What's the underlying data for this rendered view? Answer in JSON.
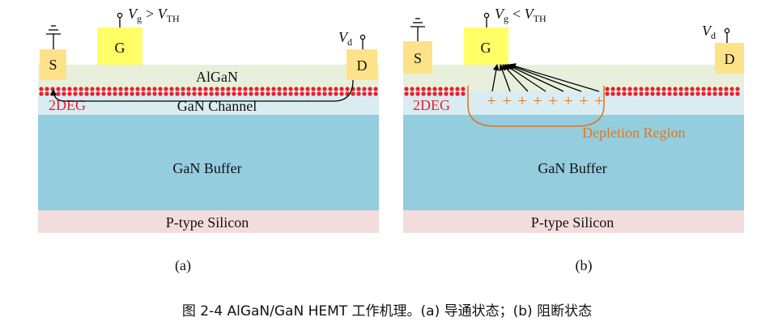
{
  "colors": {
    "algan": "#e8f0dc",
    "gan_channel": "#d8ecf2",
    "gan_buffer": "#94cddd",
    "silicon": "#f3dcdc",
    "electrode": "#fde28a",
    "gate": "#ffff66",
    "deg_red": "#e8202a",
    "depletion": "#e07820",
    "arrow": "#000000"
  },
  "panel_a": {
    "vg_label": "V",
    "vg_sub": "g",
    "vg_relation": "> ",
    "vth_label": "V",
    "vth_sub": "TH",
    "vd_label": "V",
    "vd_sub": "d",
    "source": "S",
    "gate": "G",
    "drain": "D",
    "algan": "AlGaN",
    "channel": "GaN Channel",
    "deg": "2DEG",
    "buffer": "GaN Buffer",
    "silicon": "P-type Silicon",
    "caption": "(a)"
  },
  "panel_b": {
    "vg_label": "V",
    "vg_sub": "g",
    "vg_relation": "< ",
    "vth_label": "V",
    "vth_sub": "TH",
    "vd_label": "V",
    "vd_sub": "d",
    "source": "S",
    "gate": "G",
    "drain": "D",
    "deg": "2DEG",
    "buffer": "GaN Buffer",
    "silicon": "P-type Silicon",
    "depletion": "Depletion Region",
    "charges": [
      "+",
      "+",
      "+",
      "+",
      "+",
      "+",
      "+",
      "+"
    ],
    "caption": "(b)"
  },
  "figure_caption": "图 2-4  AlGaN/GaN HEMT 工作机理。(a) 导通状态；(b) 阻断状态"
}
